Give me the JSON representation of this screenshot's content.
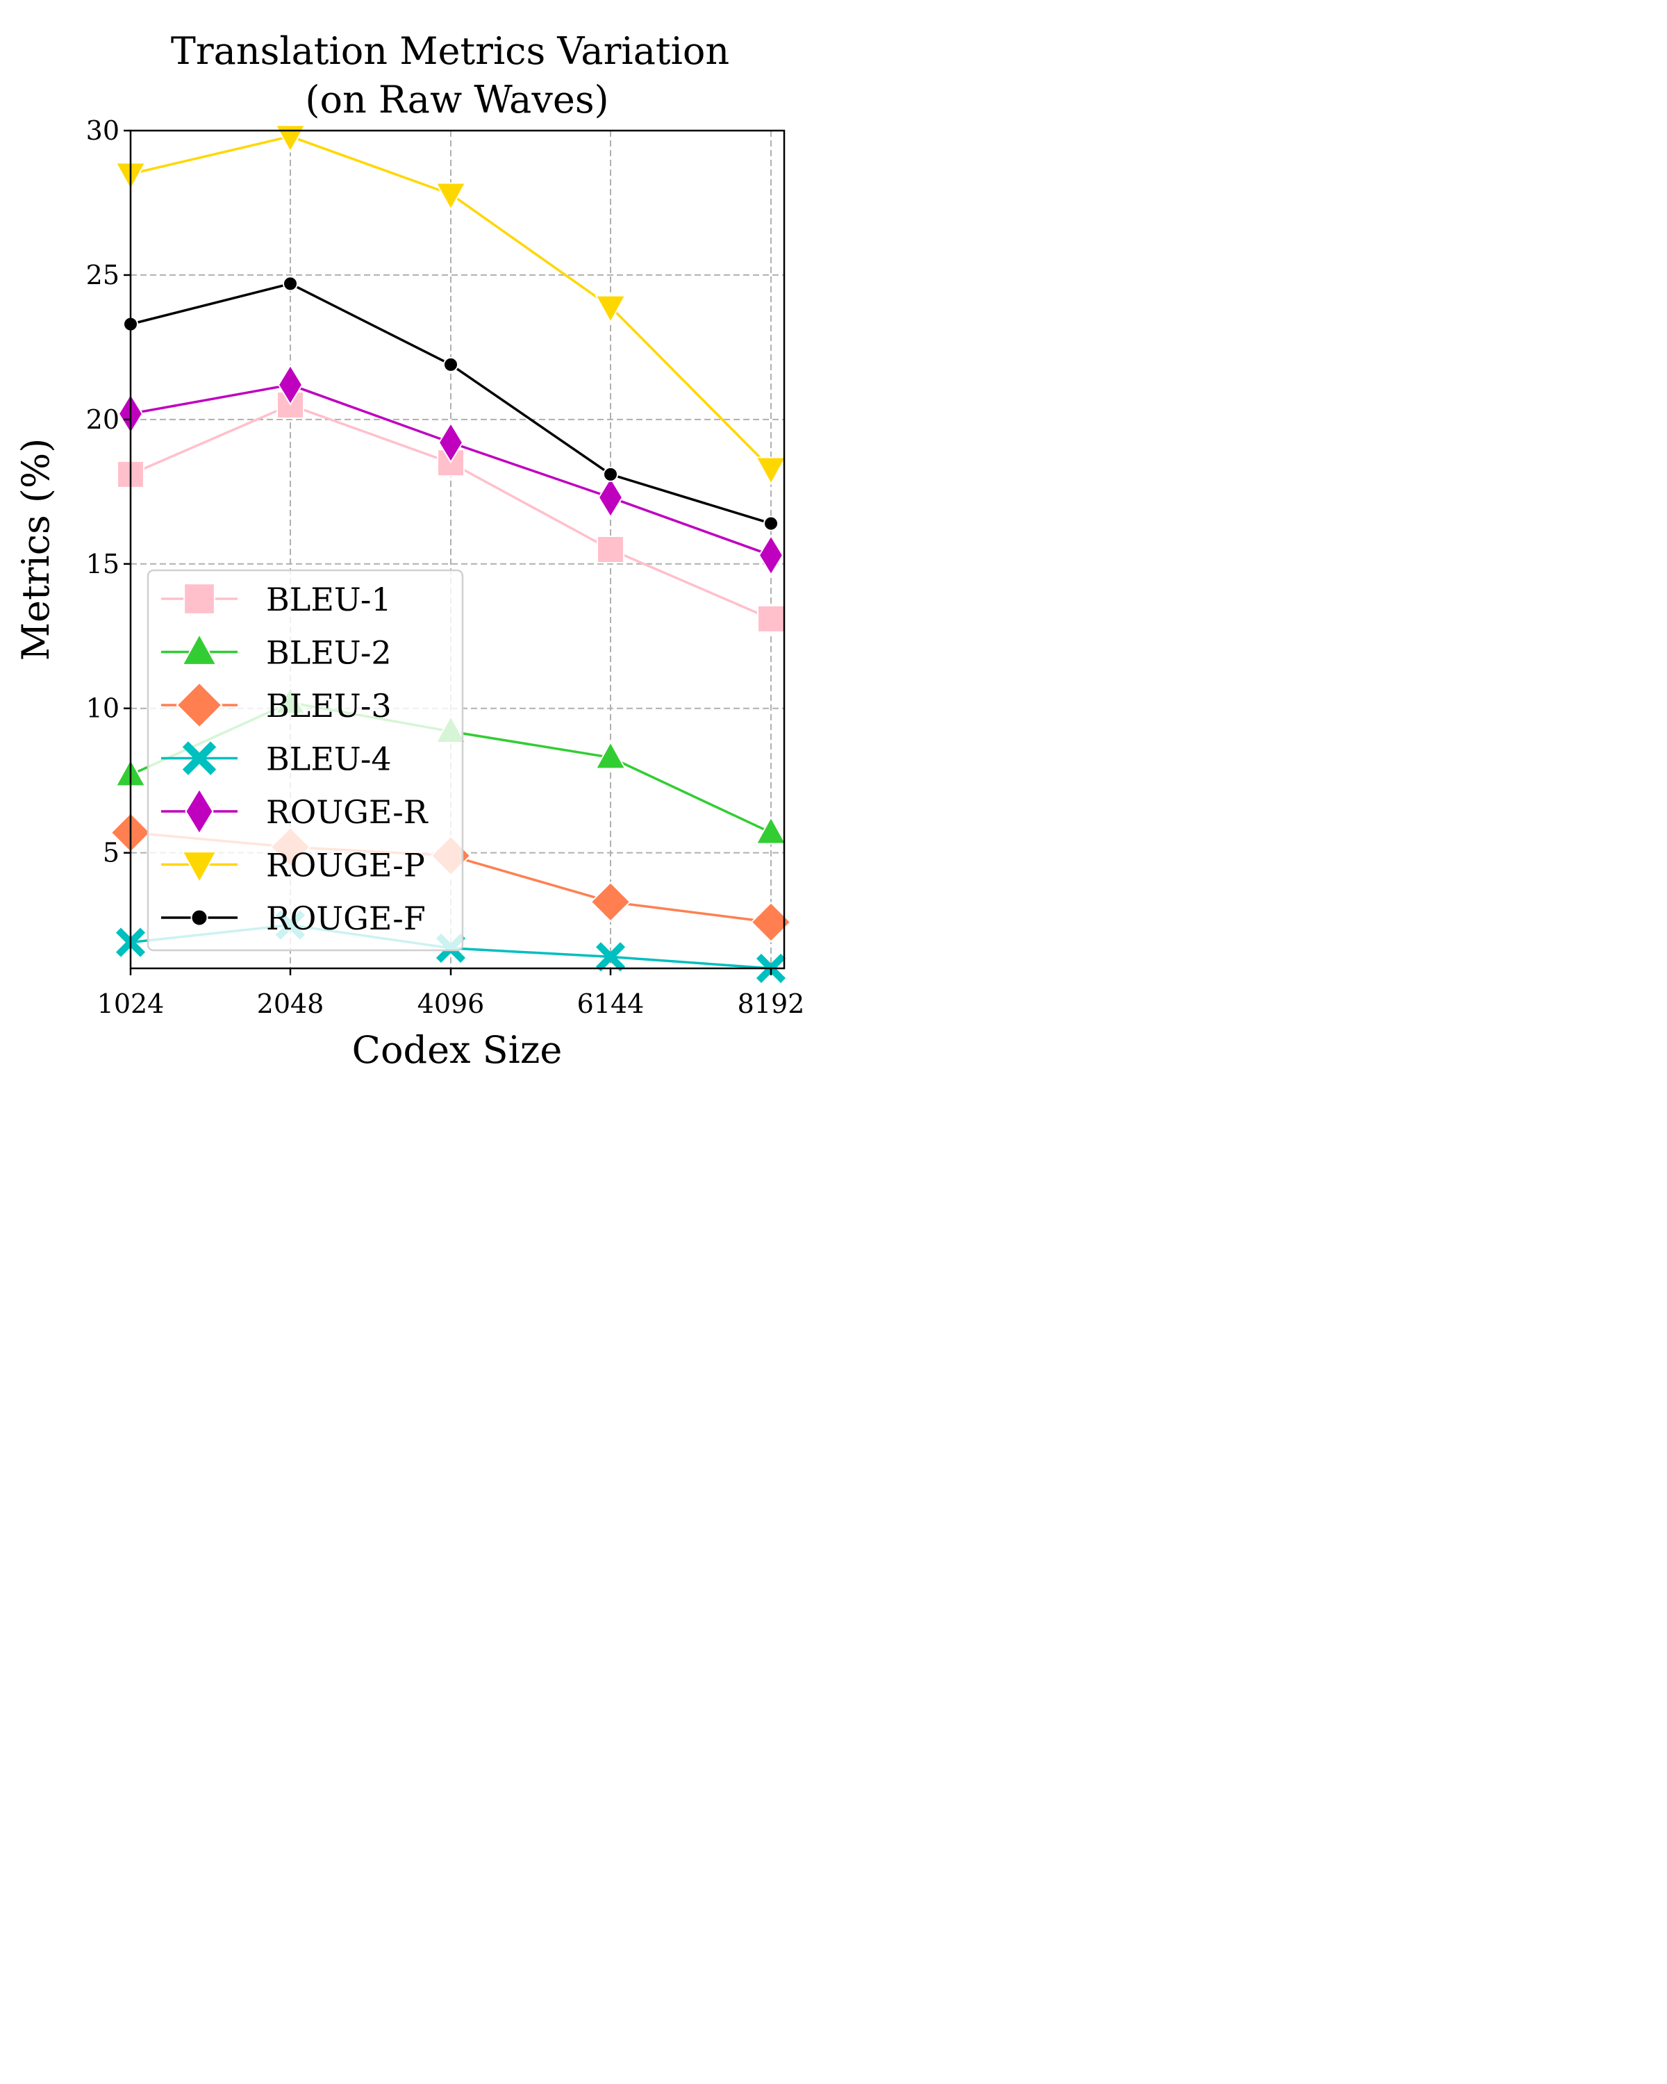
{
  "chart_data": {
    "type": "line",
    "title": "Translation Metrics Variation\n(on Raw Waves)",
    "title_lines": [
      "Translation Metrics Variation",
      "(on Raw Waves)"
    ],
    "xlabel": "Codex Size",
    "ylabel": "Metrics (%)",
    "categories": [
      "1024",
      "2048",
      "4096",
      "6144",
      "8192"
    ],
    "ylim": [
      1,
      30
    ],
    "yticks": [
      "5",
      "10",
      "15",
      "20",
      "25",
      "30"
    ],
    "ytick_values": [
      5,
      10,
      15,
      20,
      25,
      30
    ],
    "grid": true,
    "legend_position": "lower-left",
    "series": [
      {
        "name": "BLEU-1",
        "color": "#ffc0cb",
        "marker": "square",
        "values": [
          18.1,
          20.5,
          18.5,
          15.5,
          13.1
        ]
      },
      {
        "name": "BLEU-2",
        "color": "#32cd32",
        "marker": "triangle-up",
        "values": [
          7.7,
          10.2,
          9.2,
          8.3,
          5.7
        ]
      },
      {
        "name": "BLEU-3",
        "color": "#ff7f50",
        "marker": "diamond",
        "values": [
          5.7,
          5.2,
          4.9,
          3.3,
          2.6
        ]
      },
      {
        "name": "BLEU-4",
        "color": "#00bfbf",
        "marker": "x",
        "values": [
          1.9,
          2.5,
          1.7,
          1.4,
          1.0
        ]
      },
      {
        "name": "ROUGE-R",
        "color": "#bf00bf",
        "marker": "thin-diamond",
        "values": [
          20.2,
          21.2,
          19.2,
          17.3,
          15.3
        ]
      },
      {
        "name": "ROUGE-P",
        "color": "#ffd700",
        "marker": "triangle-down",
        "values": [
          28.5,
          29.8,
          27.8,
          23.9,
          18.3
        ]
      },
      {
        "name": "ROUGE-F",
        "color": "#000000",
        "marker": "dot",
        "values": [
          23.3,
          24.7,
          21.9,
          18.1,
          16.4
        ]
      }
    ]
  }
}
